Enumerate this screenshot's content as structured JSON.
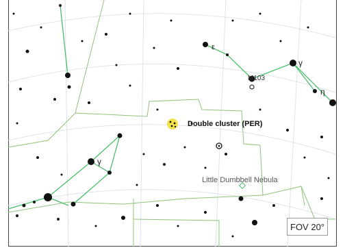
{
  "map": {
    "target_label": "Double cluster (PER)",
    "nebula_label": "Little Dumbbell Nebula",
    "messier_label": "M103",
    "fov_label": "FOV 20°",
    "greek": {
      "epsilon": "ε",
      "gamma_cas": "γ",
      "eta": "η",
      "gamma_per": "γ"
    },
    "colors": {
      "constellation_lines": "#4bbf6b",
      "boundaries": "#7fbf6a",
      "grid": "#dde3ec",
      "stars": "#111111",
      "target_marker": "#f2e34a"
    },
    "icons": [
      "target-cluster-icon",
      "galaxy-marker-icon",
      "star-icon"
    ]
  }
}
